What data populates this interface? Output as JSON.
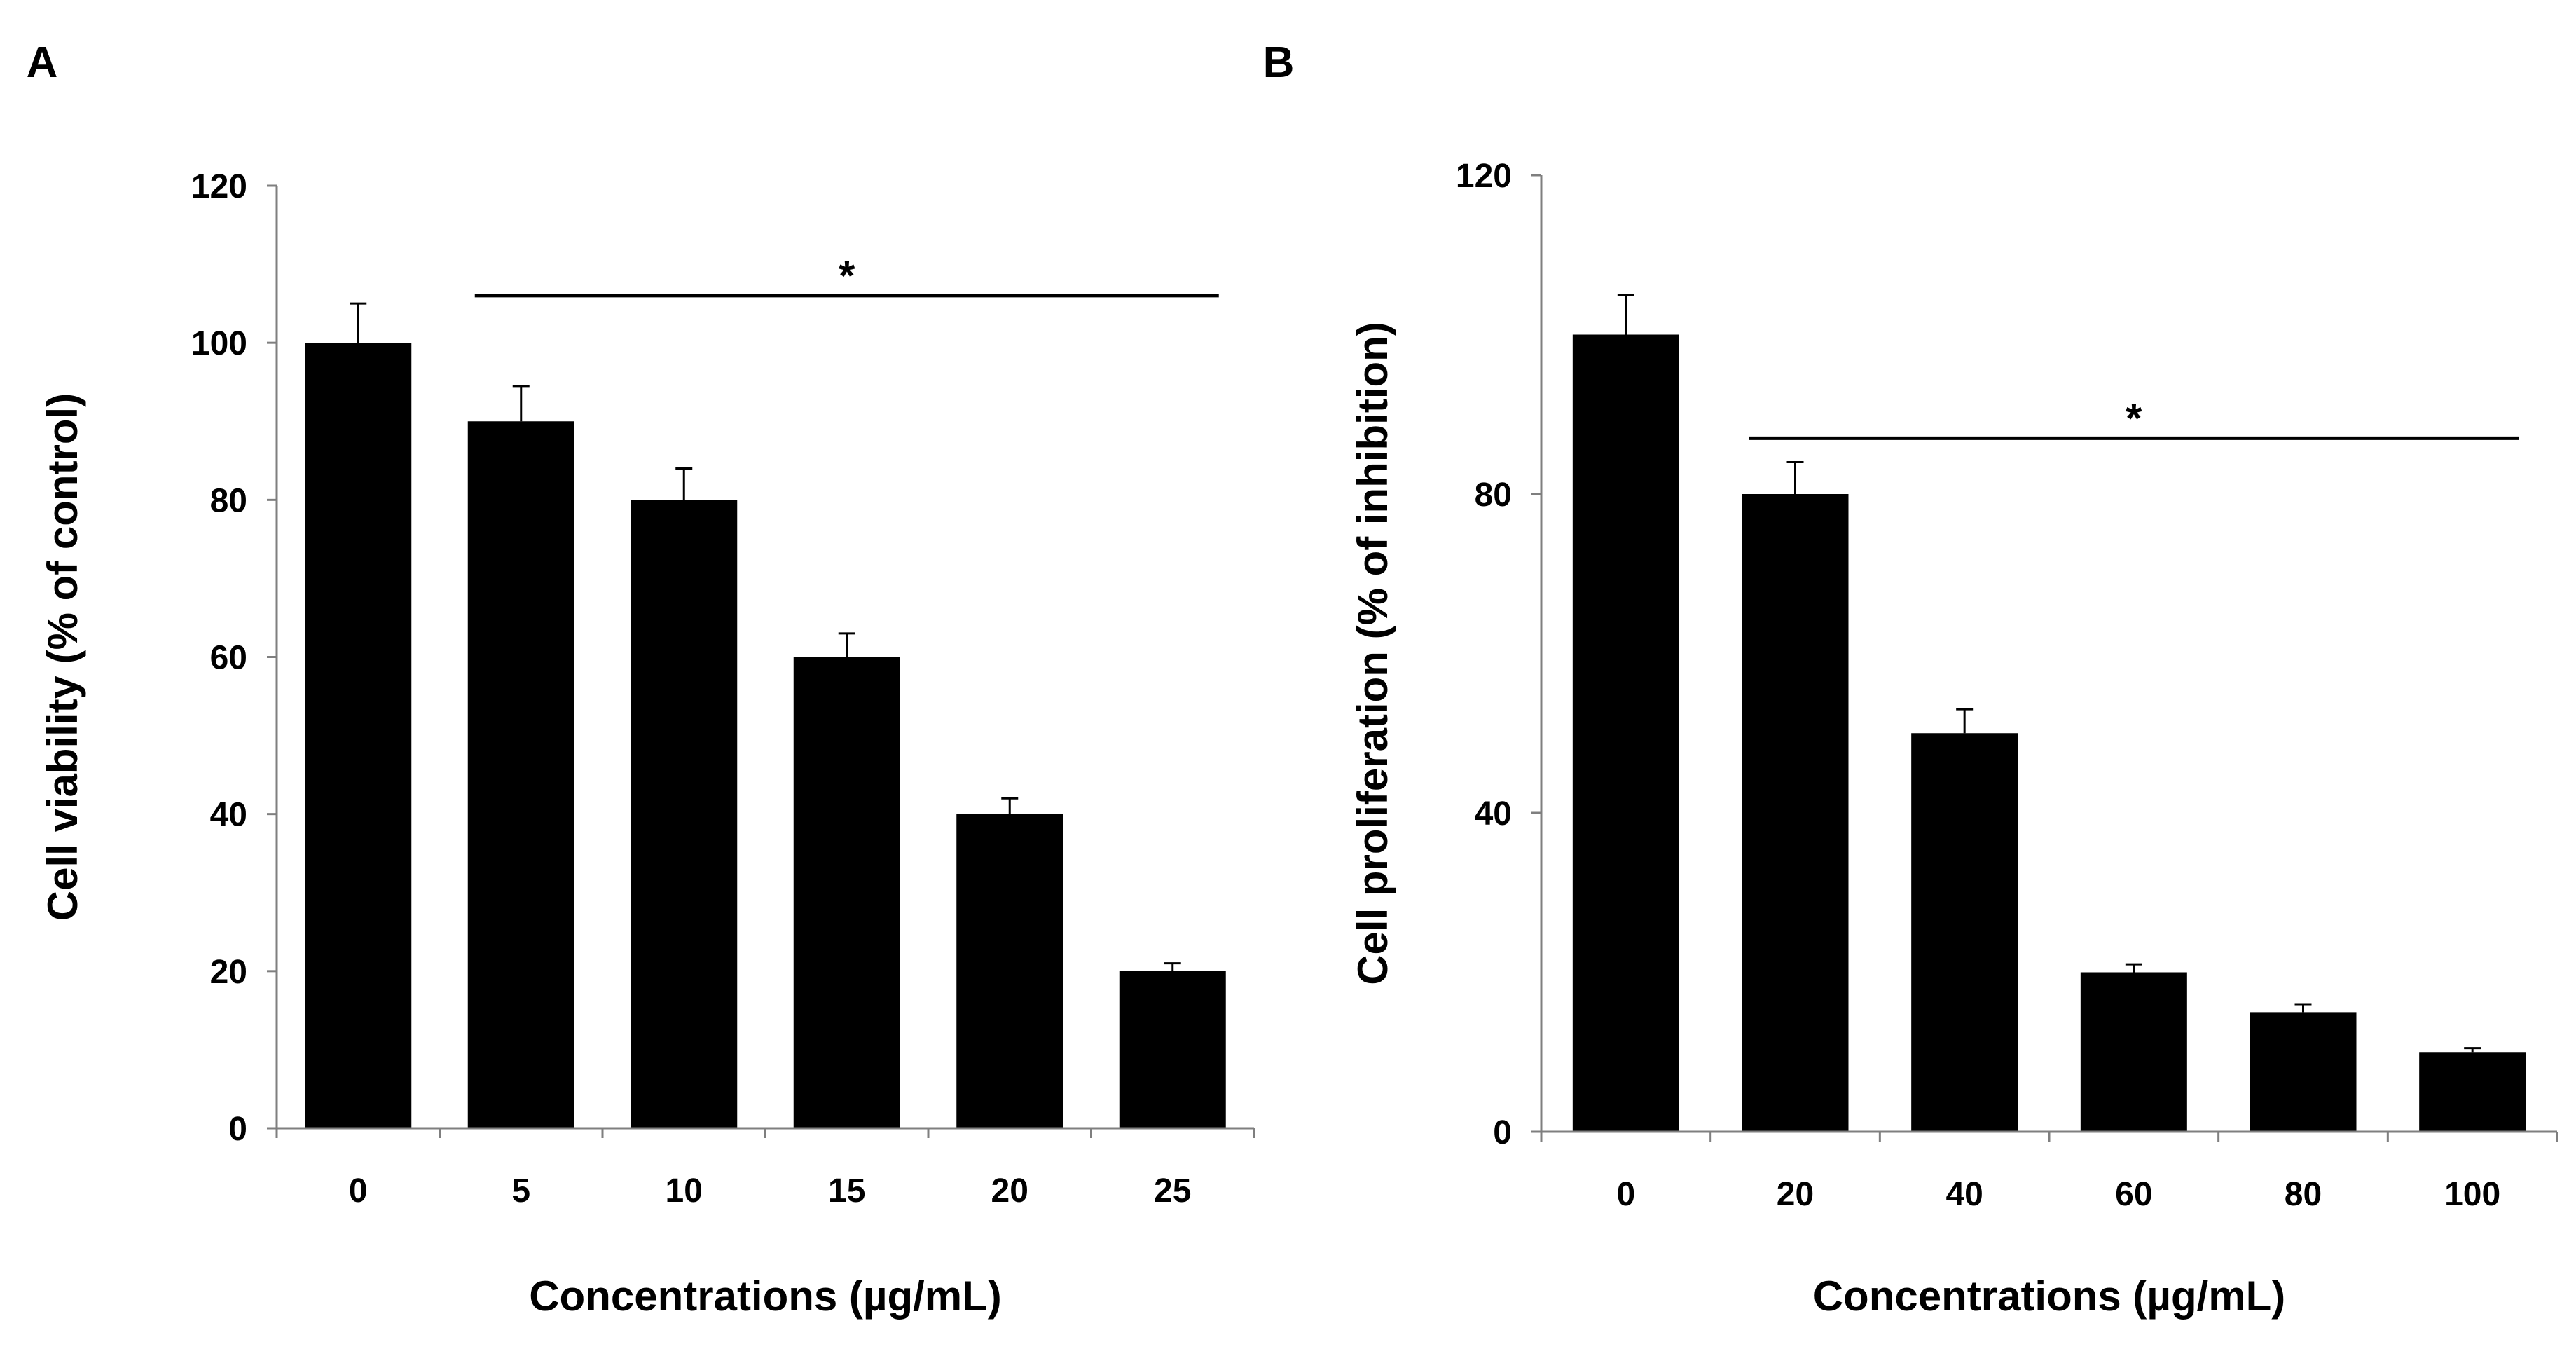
{
  "colors": {
    "background": "#ffffff",
    "bar": "#000000",
    "axis": "#7f7f7f",
    "text": "#000000"
  },
  "chart_data": [
    {
      "panel_label": "A",
      "type": "bar",
      "title": "",
      "categories": [
        "0",
        "5",
        "10",
        "15",
        "20",
        "25"
      ],
      "values": [
        100,
        90,
        80,
        60,
        40,
        20
      ],
      "errors": [
        5,
        4.5,
        4,
        3,
        2,
        1
      ],
      "xlabel": "Concentrations (µg/mL)",
      "ylabel": "Cell viability (% of control)",
      "ylim": [
        0,
        120
      ],
      "yticks": [
        0,
        20,
        40,
        60,
        80,
        100,
        120
      ],
      "grid": false,
      "legend": "none",
      "annotations": [
        {
          "text": "*",
          "from_category": "5",
          "to_category": "25",
          "y": 106
        }
      ]
    },
    {
      "panel_label": "B",
      "type": "bar",
      "title": "",
      "categories": [
        "0",
        "20",
        "40",
        "60",
        "80",
        "100"
      ],
      "values": [
        100,
        80,
        50,
        20,
        15,
        10
      ],
      "errors": [
        5,
        4,
        3,
        1,
        1,
        0.5
      ],
      "xlabel": "Concentrations (µg/mL)",
      "ylabel": "Cell proliferation (% of inhibition)",
      "ylim": [
        0,
        120
      ],
      "yticks": [
        0,
        40,
        80,
        120
      ],
      "grid": false,
      "legend": "none",
      "annotations": [
        {
          "text": "*",
          "from_category": "20",
          "to_category": "100",
          "y": 87
        }
      ]
    }
  ]
}
